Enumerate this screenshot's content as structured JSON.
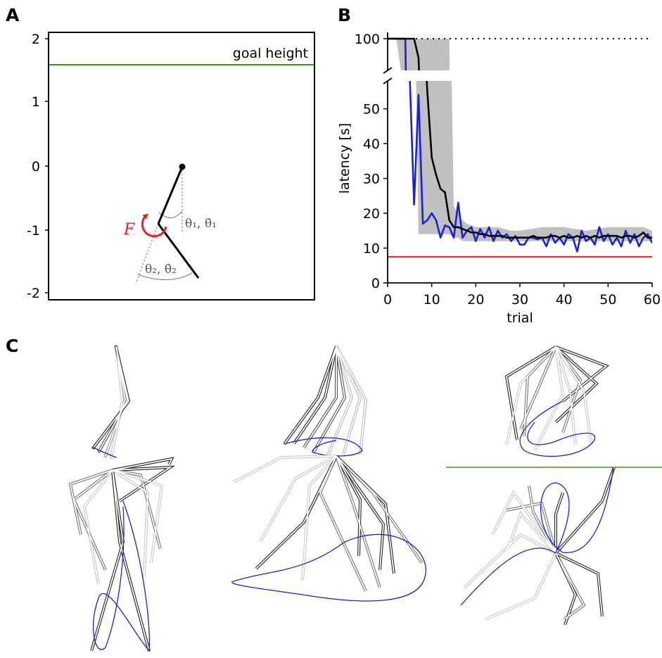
{
  "panel_labels": {
    "a": "A",
    "b": "B",
    "c": "C"
  },
  "panel_a": {
    "goal_label": "goal height",
    "y_ticks": [
      "2",
      "1",
      "0",
      "-1",
      "-2"
    ],
    "force_label": "F",
    "theta1_label": "θ₁, θ̇₁",
    "theta2_label": "θ₂, θ̇₂",
    "colors": {
      "goal": "#3a9a1e",
      "force": "#e8201e",
      "annotation": "#666666"
    }
  },
  "panel_c": {
    "colors": {
      "goal": "#3a9a1e",
      "trajectory": "#1a22d4",
      "link": "#222222"
    }
  },
  "chart_data": {
    "type": "line",
    "xlabel": "trial",
    "ylabel": "latency [s]",
    "xlim": [
      0,
      60
    ],
    "ylim": [
      0,
      100
    ],
    "y_axis_break": [
      58,
      95
    ],
    "x_ticks": [
      0,
      10,
      20,
      30,
      40,
      50,
      60
    ],
    "y_ticks": [
      0,
      10,
      20,
      30,
      40,
      50,
      100
    ],
    "reference_lines": [
      {
        "y": 100,
        "style": "dotted",
        "color": "#000000"
      },
      {
        "y": 7.5,
        "style": "solid",
        "color": "#e8201e"
      }
    ],
    "band": {
      "color": "#c0c0c0",
      "x": [
        0,
        1,
        2,
        3,
        4,
        5,
        6,
        7,
        8,
        9,
        10,
        11,
        12,
        13,
        14,
        15,
        16,
        17,
        18,
        20,
        22,
        25,
        28,
        30,
        35,
        40,
        45,
        50,
        55,
        58,
        60
      ],
      "lower": [
        100,
        100,
        100,
        95,
        95,
        95,
        95,
        14,
        14,
        14,
        14,
        14,
        14,
        14,
        14,
        13,
        13,
        12,
        12,
        12,
        12,
        12,
        12,
        12,
        12,
        12,
        12,
        12,
        12,
        12,
        12
      ],
      "upper": [
        100,
        100,
        100,
        100,
        100,
        100,
        100,
        100,
        100,
        100,
        100,
        100,
        100,
        100,
        100,
        22,
        20,
        18,
        17,
        16,
        16,
        16,
        15,
        15,
        16,
        16,
        15,
        16,
        16,
        16,
        15
      ]
    },
    "series": [
      {
        "color": "#000000",
        "x": [
          0,
          1,
          2,
          3,
          4,
          5,
          6,
          7,
          8,
          9,
          10,
          11,
          12,
          13,
          14,
          15,
          16,
          17,
          18,
          19,
          20,
          21,
          22,
          23,
          24,
          25,
          26,
          27,
          28,
          29,
          30,
          31,
          32,
          33,
          34,
          35,
          36,
          37,
          38,
          39,
          40,
          41,
          42,
          43,
          44,
          45,
          46,
          47,
          48,
          49,
          50,
          51,
          52,
          53,
          54,
          55,
          56,
          57,
          58,
          59,
          60
        ],
        "values": [
          100,
          100,
          100,
          100,
          100,
          100,
          100,
          97,
          80,
          55,
          36,
          31,
          27,
          26,
          18,
          16,
          16,
          15.5,
          15,
          14.5,
          14.5,
          14,
          14,
          13.5,
          13.5,
          13.5,
          13.5,
          13,
          13,
          13,
          13,
          13,
          13,
          13.5,
          13,
          13,
          13,
          13.5,
          13.5,
          13,
          13.5,
          13,
          13,
          13.5,
          13,
          13.5,
          13,
          13.5,
          13,
          13.5,
          13.5,
          13.5,
          13.5,
          13,
          13.5,
          13.5,
          13,
          13.5,
          14.5,
          13,
          13
        ]
      },
      {
        "color": "#1a22d4",
        "x": [
          0,
          1,
          2,
          3,
          4,
          5,
          6,
          7,
          8,
          9,
          10,
          11,
          12,
          13,
          14,
          15,
          16,
          17,
          18,
          19,
          20,
          21,
          22,
          23,
          24,
          25,
          26,
          27,
          28,
          29,
          30,
          31,
          32,
          33,
          34,
          35,
          36,
          37,
          38,
          39,
          40,
          41,
          42,
          43,
          44,
          45,
          46,
          47,
          48,
          49,
          50,
          51,
          52,
          53,
          54,
          55,
          56,
          57,
          58,
          59,
          60
        ],
        "values": [
          100,
          100,
          100,
          100,
          100,
          60,
          22.5,
          54,
          17,
          18,
          20,
          18,
          13,
          16.5,
          16,
          13,
          23,
          13,
          15,
          16,
          12,
          15.5,
          13,
          16,
          12,
          15,
          13,
          14,
          12,
          13.5,
          11,
          11,
          13,
          13,
          12.5,
          13,
          10.5,
          14,
          11.5,
          13,
          11,
          14,
          13,
          9,
          15,
          12,
          13,
          11,
          16,
          12,
          14,
          11,
          13,
          10.5,
          15,
          11.5,
          14,
          10.5,
          13,
          14,
          11.5
        ]
      }
    ]
  }
}
